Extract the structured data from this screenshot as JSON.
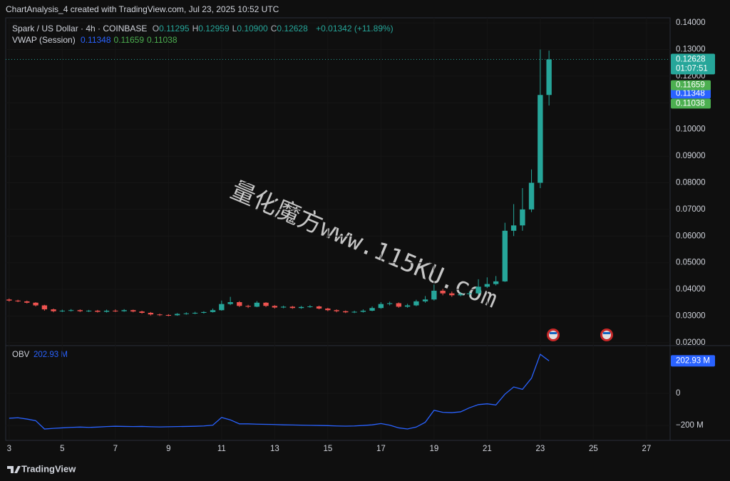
{
  "caption": "ChartAnalysis_4 created with TradingView.com, Jul 23, 2025 10:52 UTC",
  "footer": "TradingView",
  "watermark": "量化魔方www.115KU.com",
  "chart_data": [
    {
      "type": "candlestick",
      "title": "Spark / US Dollar · 4h · COINBASE",
      "ohlc_header": [
        {
          "key": "O",
          "value": "0.11295"
        },
        {
          "key": "H",
          "value": "0.12959"
        },
        {
          "key": "L",
          "value": "0.10900"
        },
        {
          "key": "C",
          "value": "0.12628"
        }
      ],
      "change": "+0.01342 (+11.89%)",
      "countdown": "01:07:51",
      "vwap": {
        "name": "VWAP (Session)",
        "values": [
          0.11348,
          0.11659,
          0.11038
        ],
        "colors": [
          "#2962ff",
          "#4caf50",
          "#4caf50"
        ]
      },
      "up_color": "#26a69a",
      "down_color": "#ef5350",
      "x": [
        3,
        3.33,
        3.67,
        4,
        4.33,
        4.67,
        5,
        5.33,
        5.67,
        6,
        6.33,
        6.67,
        7,
        7.33,
        7.67,
        8,
        8.33,
        8.67,
        9,
        9.33,
        9.67,
        10,
        10.33,
        10.67,
        11,
        11.33,
        11.67,
        12,
        12.33,
        12.67,
        13,
        13.33,
        13.67,
        14,
        14.33,
        14.67,
        15,
        15.33,
        15.67,
        16,
        16.33,
        16.67,
        17,
        17.33,
        17.67,
        18,
        18.33,
        18.67,
        19,
        19.33,
        19.67,
        20,
        20.33,
        20.67,
        21,
        21.33,
        21.67,
        22,
        22.33,
        22.67,
        23,
        23.33
      ],
      "open": [
        0.0362,
        0.0358,
        0.0355,
        0.035,
        0.034,
        0.0325,
        0.0318,
        0.032,
        0.0322,
        0.0318,
        0.032,
        0.0316,
        0.032,
        0.0318,
        0.0322,
        0.0317,
        0.0312,
        0.0306,
        0.0304,
        0.0303,
        0.0308,
        0.031,
        0.0312,
        0.0315,
        0.0322,
        0.0345,
        0.0352,
        0.0338,
        0.0335,
        0.035,
        0.0338,
        0.0332,
        0.0335,
        0.033,
        0.0334,
        0.0336,
        0.0328,
        0.0322,
        0.0318,
        0.0314,
        0.0316,
        0.032,
        0.033,
        0.0345,
        0.0348,
        0.0335,
        0.034,
        0.0355,
        0.0362,
        0.0395,
        0.0385,
        0.0378,
        0.0382,
        0.0385,
        0.041,
        0.042,
        0.043,
        0.062,
        0.064,
        0.07,
        0.08,
        0.11295
      ],
      "high": [
        0.0366,
        0.0361,
        0.0358,
        0.0352,
        0.0342,
        0.0328,
        0.0324,
        0.0326,
        0.0325,
        0.0323,
        0.0323,
        0.0324,
        0.0325,
        0.0326,
        0.0324,
        0.032,
        0.0315,
        0.0309,
        0.0307,
        0.0311,
        0.0314,
        0.0316,
        0.0318,
        0.0328,
        0.0358,
        0.0372,
        0.0356,
        0.0342,
        0.0356,
        0.0352,
        0.0341,
        0.0339,
        0.0338,
        0.0338,
        0.0341,
        0.0339,
        0.0331,
        0.0325,
        0.0321,
        0.032,
        0.0325,
        0.0336,
        0.0352,
        0.0354,
        0.0351,
        0.0346,
        0.0361,
        0.0375,
        0.0418,
        0.0402,
        0.0392,
        0.039,
        0.0393,
        0.0438,
        0.0445,
        0.045,
        0.065,
        0.072,
        0.078,
        0.085,
        0.13,
        0.12959
      ],
      "low": [
        0.0354,
        0.0352,
        0.0347,
        0.0336,
        0.032,
        0.0314,
        0.0315,
        0.0317,
        0.0315,
        0.0315,
        0.0313,
        0.0313,
        0.0315,
        0.0316,
        0.0314,
        0.0309,
        0.0302,
        0.03,
        0.0299,
        0.0301,
        0.0305,
        0.0307,
        0.0309,
        0.0313,
        0.032,
        0.0341,
        0.0334,
        0.033,
        0.0333,
        0.0334,
        0.0328,
        0.0329,
        0.0327,
        0.0327,
        0.0331,
        0.0325,
        0.0318,
        0.0314,
        0.0311,
        0.0311,
        0.0313,
        0.0318,
        0.0327,
        0.034,
        0.0331,
        0.0331,
        0.0337,
        0.035,
        0.0358,
        0.0378,
        0.0372,
        0.0374,
        0.0377,
        0.038,
        0.0405,
        0.0415,
        0.0428,
        0.06,
        0.062,
        0.069,
        0.078,
        0.109
      ],
      "close": [
        0.0358,
        0.0355,
        0.035,
        0.034,
        0.0325,
        0.0318,
        0.032,
        0.0322,
        0.0318,
        0.032,
        0.0316,
        0.032,
        0.0318,
        0.0322,
        0.0317,
        0.0312,
        0.0306,
        0.0304,
        0.0303,
        0.0308,
        0.031,
        0.0312,
        0.0315,
        0.0322,
        0.0345,
        0.0352,
        0.0338,
        0.0335,
        0.035,
        0.0338,
        0.0332,
        0.0335,
        0.033,
        0.0334,
        0.0336,
        0.0328,
        0.0322,
        0.0318,
        0.0314,
        0.0316,
        0.032,
        0.033,
        0.0345,
        0.0348,
        0.0335,
        0.034,
        0.0355,
        0.0362,
        0.0395,
        0.0385,
        0.0378,
        0.0382,
        0.0385,
        0.041,
        0.042,
        0.043,
        0.062,
        0.064,
        0.07,
        0.08,
        0.11295,
        0.12628
      ],
      "xlim": [
        2.87,
        27.89
      ],
      "xticks": [
        3,
        5,
        7,
        9,
        11,
        13,
        15,
        17,
        19,
        21,
        23,
        25,
        27
      ],
      "ylim": [
        0.0189,
        0.1419
      ],
      "yticks": [
        {
          "value": 0.14,
          "label": "0.14000"
        },
        {
          "value": 0.13,
          "label": "0.13000"
        },
        {
          "value": 0.12,
          "label": "0.12000"
        },
        {
          "value": 0.11,
          "label": "0.11000"
        },
        {
          "value": 0.1,
          "label": "0.10000"
        },
        {
          "value": 0.09,
          "label": "0.09000"
        },
        {
          "value": 0.08,
          "label": "0.08000"
        },
        {
          "value": 0.07,
          "label": "0.07000"
        },
        {
          "value": 0.06,
          "label": "0.06000"
        },
        {
          "value": 0.05,
          "label": "0.05000"
        },
        {
          "value": 0.04,
          "label": "0.04000"
        },
        {
          "value": 0.03,
          "label": "0.03000"
        },
        {
          "value": 0.02,
          "label": "0.02000"
        }
      ]
    },
    {
      "type": "line",
      "name": "OBV",
      "color": "#2962ff",
      "values": [
        -155,
        -152,
        -160,
        -170,
        -222,
        -218,
        -215,
        -212,
        -210,
        -212,
        -210,
        -207,
        -205,
        -206,
        -207,
        -206,
        -208,
        -209,
        -208,
        -207,
        -206,
        -205,
        -203,
        -198,
        -150,
        -165,
        -190,
        -190,
        -192,
        -193,
        -194,
        -196,
        -197,
        -198,
        -199,
        -200,
        -201,
        -203,
        -204,
        -203,
        -200,
        -196,
        -188,
        -198,
        -215,
        -222,
        -210,
        -180,
        -105,
        -118,
        -120,
        -115,
        -90,
        -70,
        -65,
        -72,
        -5,
        40,
        25,
        95,
        244,
        202.93
      ],
      "last_value_label": "202.93 M",
      "ylim": [
        -293,
        289
      ],
      "yticks": [
        {
          "value": -200,
          "label": "−200 M"
        },
        0
      ]
    }
  ]
}
